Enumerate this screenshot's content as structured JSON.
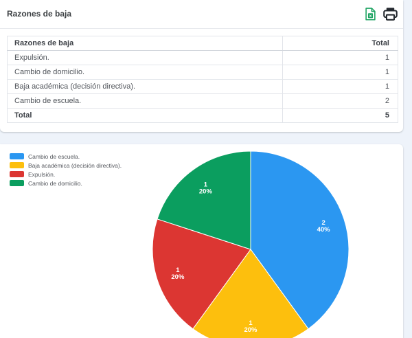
{
  "page": {
    "background_color": "#eef3fa",
    "card_color": "#ffffff"
  },
  "header": {
    "title": "Razones de baja",
    "excel_icon_color": "#1fa463",
    "print_icon_color": "#24292f"
  },
  "table": {
    "columns": {
      "reason": "Razones de baja",
      "total": "Total"
    },
    "rows": [
      {
        "label": "Expulsión.",
        "total": "1"
      },
      {
        "label": "Cambio de domicilio.",
        "total": "1"
      },
      {
        "label": "Baja académica (decisión directiva).",
        "total": "1"
      },
      {
        "label": "Cambio de escuela.",
        "total": "2"
      }
    ],
    "footer": {
      "label": "Total",
      "total": "5"
    }
  },
  "chart_data": {
    "type": "pie",
    "title": "",
    "legend_position": "top-left",
    "start_angle_deg": 0,
    "direction": "clockwise",
    "slice_label_color": "#ffffff",
    "total": 5,
    "slices": [
      {
        "label": "Cambio de escuela.",
        "value": 2,
        "percent": "40%",
        "color": "#2b97f1"
      },
      {
        "label": "Baja académica (decisión directiva).",
        "value": 1,
        "percent": "20%",
        "color": "#fdbf0d"
      },
      {
        "label": "Expulsión.",
        "value": 1,
        "percent": "20%",
        "color": "#dc3632"
      },
      {
        "label": "Cambio de domicilio.",
        "value": 1,
        "percent": "20%",
        "color": "#0b9e5f"
      }
    ]
  }
}
